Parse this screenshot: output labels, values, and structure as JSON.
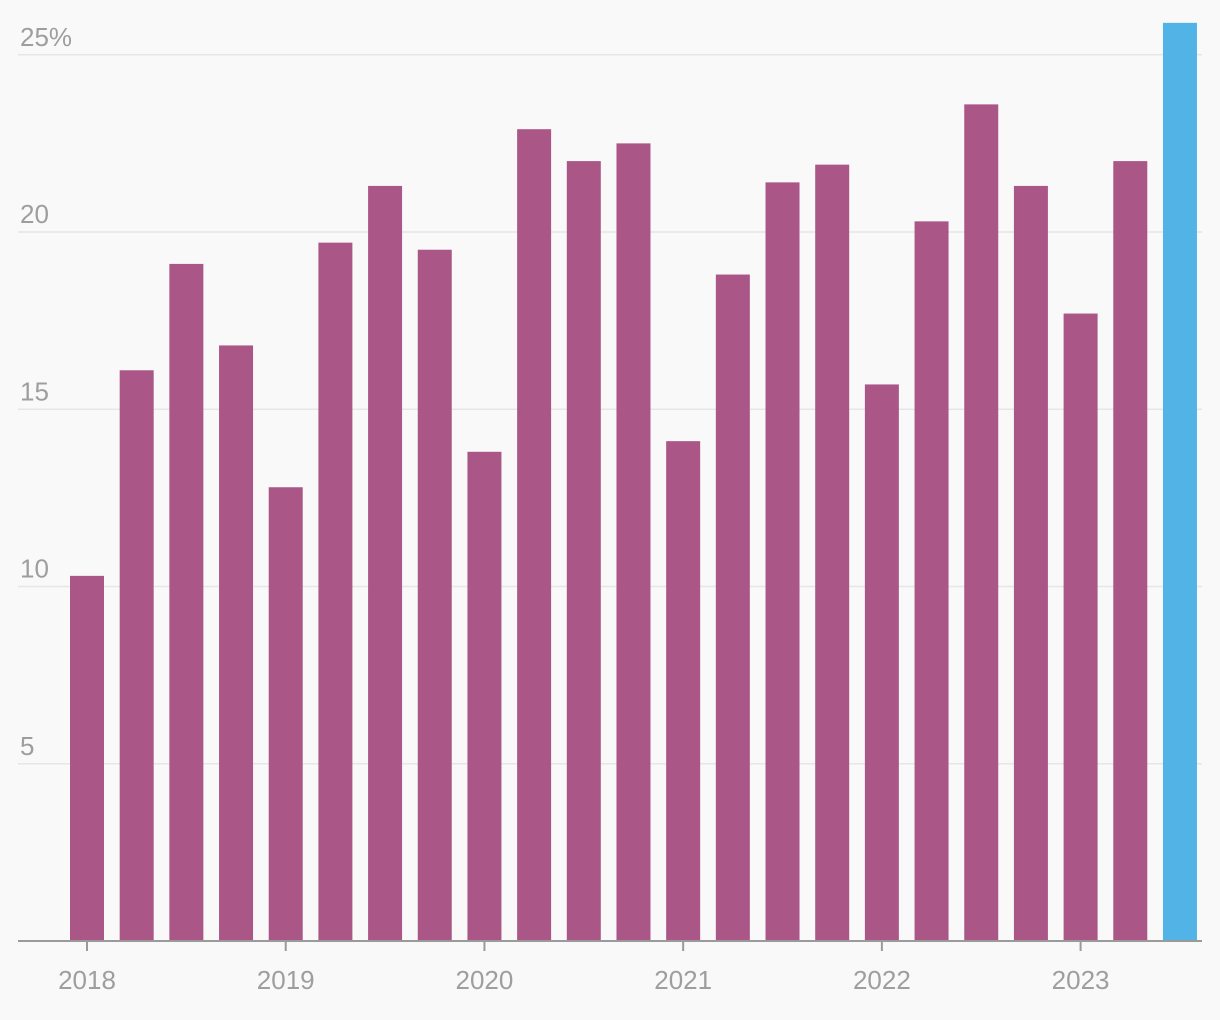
{
  "chart_data": {
    "type": "bar",
    "title": "",
    "xlabel": "",
    "ylabel": "",
    "ylim": [
      0,
      25
    ],
    "y_ticks": [
      {
        "value": 5,
        "label": "5"
      },
      {
        "value": 10,
        "label": "10"
      },
      {
        "value": 15,
        "label": "15"
      },
      {
        "value": 20,
        "label": "20"
      },
      {
        "value": 25,
        "label": "25%"
      }
    ],
    "x_year_labels": [
      "2018",
      "2019",
      "2020",
      "2021",
      "2022",
      "2023"
    ],
    "categories": [
      "2018 Q1",
      "2018 Q2",
      "2018 Q3",
      "2018 Q4",
      "2019 Q1",
      "2019 Q2",
      "2019 Q3",
      "2019 Q4",
      "2020 Q1",
      "2020 Q2",
      "2020 Q3",
      "2020 Q4",
      "2021 Q1",
      "2021 Q2",
      "2021 Q3",
      "2021 Q4",
      "2022 Q1",
      "2022 Q2",
      "2022 Q3",
      "2022 Q4",
      "2023 Q1",
      "2023 Q2",
      "2023 Q3"
    ],
    "values": [
      10.3,
      16.1,
      19.1,
      16.8,
      12.8,
      19.7,
      21.3,
      19.5,
      13.8,
      22.9,
      22.0,
      22.5,
      14.1,
      18.8,
      21.4,
      21.9,
      15.7,
      20.3,
      23.6,
      21.3,
      17.7,
      22.0,
      25.9
    ],
    "colors": {
      "default": "#aa5787",
      "highlight": "#52b3e6"
    },
    "highlight_index": 22,
    "grid": true
  }
}
